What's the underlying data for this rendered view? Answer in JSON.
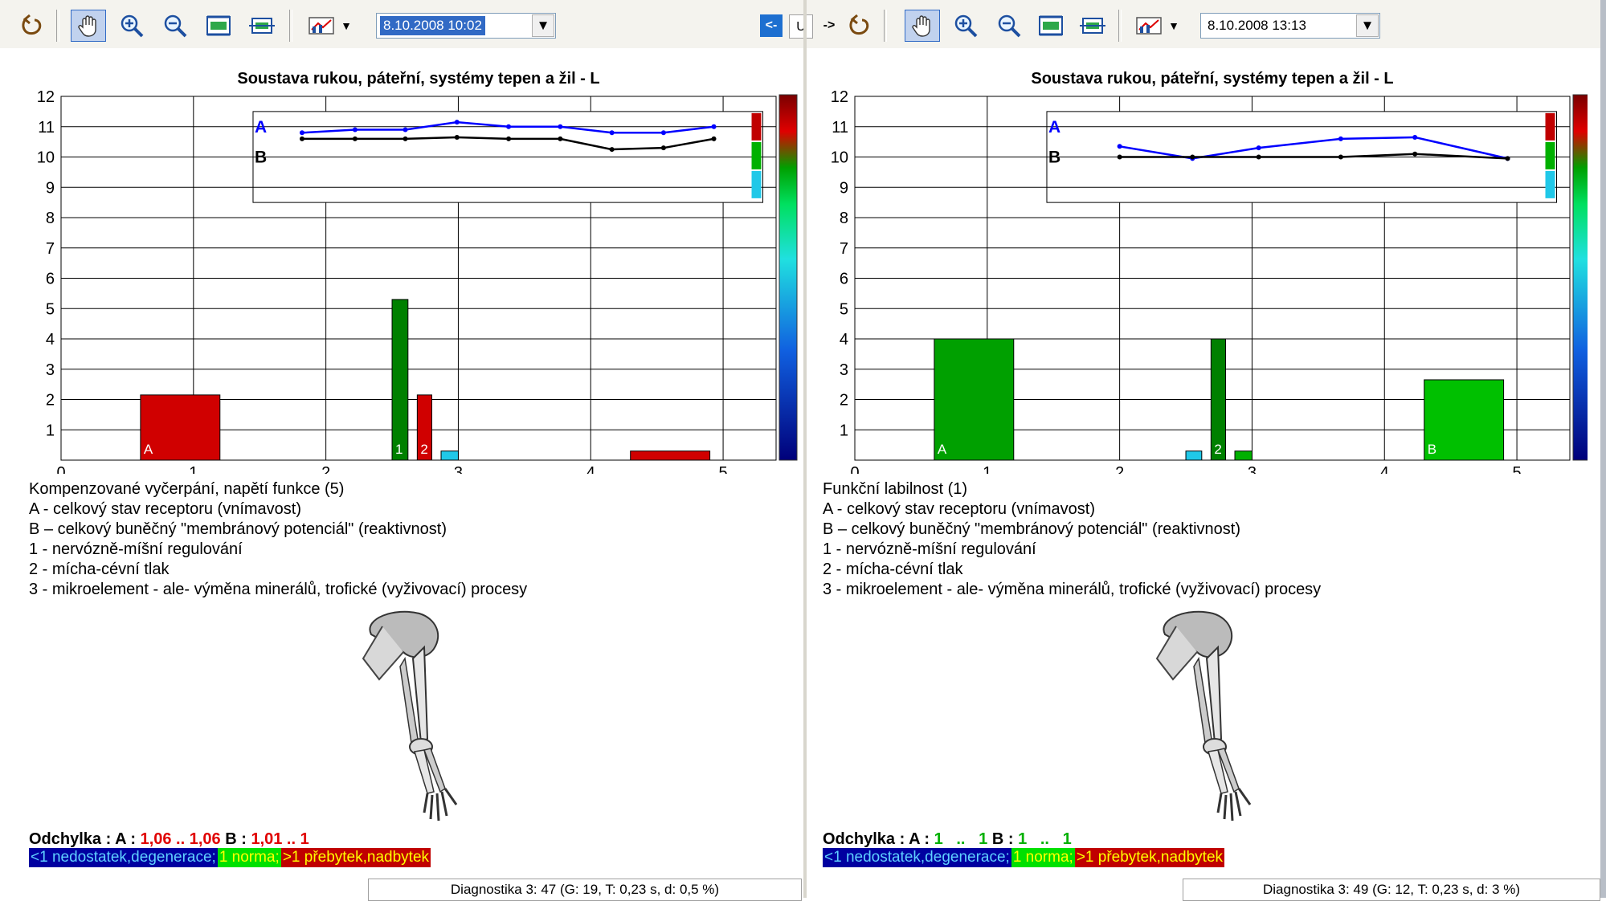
{
  "toolbar": {
    "left_date": "8.10.2008 10:02",
    "right_date": "8.10.2008 13:13",
    "swap_label": "U",
    "prev_arrow": "<-",
    "next_arrow": "->",
    "icons": [
      "undo-icon",
      "hand-pan-icon",
      "zoom-in-icon",
      "zoom-out-icon",
      "fit-icon",
      "fit-height-icon",
      "chart-mode-icon"
    ]
  },
  "left": {
    "chart_title": "Soustava rukou, páteřní, systémy tepen a žil - L",
    "summary": "Kompenzované vyčerpání, napětí funkce (5)",
    "legend_lines": [
      "A - celkový stav receptoru (vnímavost)",
      "B – celkový buněčný \"membránový potenciál\" (reaktivnost)",
      "1 - nervózně-míšní regulování",
      "2 - mícha-cévní tlak",
      "3 - mikroelement - ale- výměna minerálů, trofické (vyživovací) procesy"
    ],
    "deviation": {
      "label": "Odchylka :",
      "a_label": "A :",
      "a_value": "1,06 .. 1,06",
      "b_label": "B :",
      "b_value": "1,01 ..   1"
    },
    "status": "Diagnostika 3: 47 (G: 19, T: 0,23 s, d: 0,5 %)"
  },
  "right": {
    "chart_title": "Soustava rukou, páteřní, systémy tepen a žil - L",
    "summary": "Funkční labilnost (1)",
    "legend_lines": [
      "A - celkový stav receptoru (vnímavost)",
      "B – celkový buněčný \"membránový potenciál\" (reaktivnost)",
      "1 - nervózně-míšní regulování",
      "2 - mícha-cévní tlak",
      "3 - mikroelement - ale- výměna minerálů, trofické (vyživovací) procesy"
    ],
    "deviation": {
      "label": "Odchylka :",
      "a_label": "A :",
      "a_value": "1   ..   1",
      "b_label": "B :",
      "b_value": "1   ..   1"
    },
    "status": "Diagnostika 3: 49 (G: 12, T: 0,23 s, d: 3 %)"
  },
  "scale_legend": {
    "low": "<1 nedostatek,degenerace;",
    "norm": "1 norma;",
    "high": ">1 přebytek,nadbytek",
    "colors": {
      "low_bg": "#0000a0",
      "low_fg": "#5fd0ff",
      "norm_bg": "#00e000",
      "norm_fg": "#ffff00",
      "high_bg": "#c00000",
      "high_fg": "#ffff00"
    }
  },
  "chart_data": [
    {
      "type": "bar",
      "title": "Soustava rukou, páteřní, systémy tepen a žil - L",
      "xlim": [
        0,
        5.4
      ],
      "ylim": [
        0,
        12
      ],
      "x_ticks": [
        "0",
        "1",
        "2",
        "3",
        "4",
        "5"
      ],
      "y_ticks": [
        "1",
        "2",
        "3",
        "4",
        "5",
        "6",
        "7",
        "8",
        "9",
        "10",
        "11",
        "12"
      ],
      "bars": [
        {
          "x0": 0.6,
          "x1": 1.2,
          "value": 2.15,
          "color": "#d00000",
          "label": "A"
        },
        {
          "x0": 2.5,
          "x1": 2.62,
          "value": 5.3,
          "color": "#008000",
          "label": "1"
        },
        {
          "x0": 2.69,
          "x1": 2.8,
          "value": 2.15,
          "color": "#d00000",
          "label": "2"
        },
        {
          "x0": 2.87,
          "x1": 3.0,
          "value": 0.3,
          "color": "#20c8e8",
          "label": ""
        },
        {
          "x0": 4.3,
          "x1": 4.9,
          "value": 0.3,
          "color": "#d00000",
          "label": ""
        }
      ],
      "inset": {
        "series": [
          {
            "name": "A",
            "color": "#0000ff",
            "x": [
              1.82,
              2.22,
              2.6,
              2.99,
              3.38,
              3.77,
              4.16,
              4.55,
              4.93
            ],
            "y": [
              10.8,
              10.9,
              10.9,
              11.15,
              11.0,
              11.0,
              10.8,
              10.8,
              11.0
            ]
          },
          {
            "name": "B",
            "color": "#000000",
            "x": [
              1.82,
              2.22,
              2.6,
              2.99,
              3.38,
              3.77,
              4.16,
              4.55,
              4.93
            ],
            "y": [
              10.6,
              10.6,
              10.6,
              10.65,
              10.6,
              10.6,
              10.25,
              10.3,
              10.6
            ]
          }
        ]
      }
    },
    {
      "type": "bar",
      "title": "Soustava rukou, páteřní, systémy tepen a žil - L",
      "xlim": [
        0,
        5.4
      ],
      "ylim": [
        0,
        12
      ],
      "x_ticks": [
        "0",
        "1",
        "2",
        "3",
        "4",
        "5"
      ],
      "y_ticks": [
        "1",
        "2",
        "3",
        "4",
        "5",
        "6",
        "7",
        "8",
        "9",
        "10",
        "11",
        "12"
      ],
      "bars": [
        {
          "x0": 0.6,
          "x1": 1.2,
          "value": 4.0,
          "color": "#00a000",
          "label": "A"
        },
        {
          "x0": 2.5,
          "x1": 2.62,
          "value": 0.3,
          "color": "#20c8e8",
          "label": ""
        },
        {
          "x0": 2.69,
          "x1": 2.8,
          "value": 4.0,
          "color": "#008000",
          "label": "2"
        },
        {
          "x0": 2.87,
          "x1": 3.0,
          "value": 0.3,
          "color": "#00b000",
          "label": ""
        },
        {
          "x0": 4.3,
          "x1": 4.9,
          "value": 2.65,
          "color": "#00c000",
          "label": "B"
        }
      ],
      "inset": {
        "series": [
          {
            "name": "A",
            "color": "#0000ff",
            "x": [
              2.0,
              2.55,
              3.05,
              3.67,
              4.23,
              4.93
            ],
            "y": [
              10.35,
              9.95,
              10.3,
              10.6,
              10.65,
              9.95
            ]
          },
          {
            "name": "B",
            "color": "#000000",
            "x": [
              2.0,
              2.55,
              3.05,
              3.67,
              4.23,
              4.93
            ],
            "y": [
              10.0,
              10.0,
              10.0,
              10.0,
              10.1,
              9.95
            ]
          }
        ]
      }
    }
  ]
}
